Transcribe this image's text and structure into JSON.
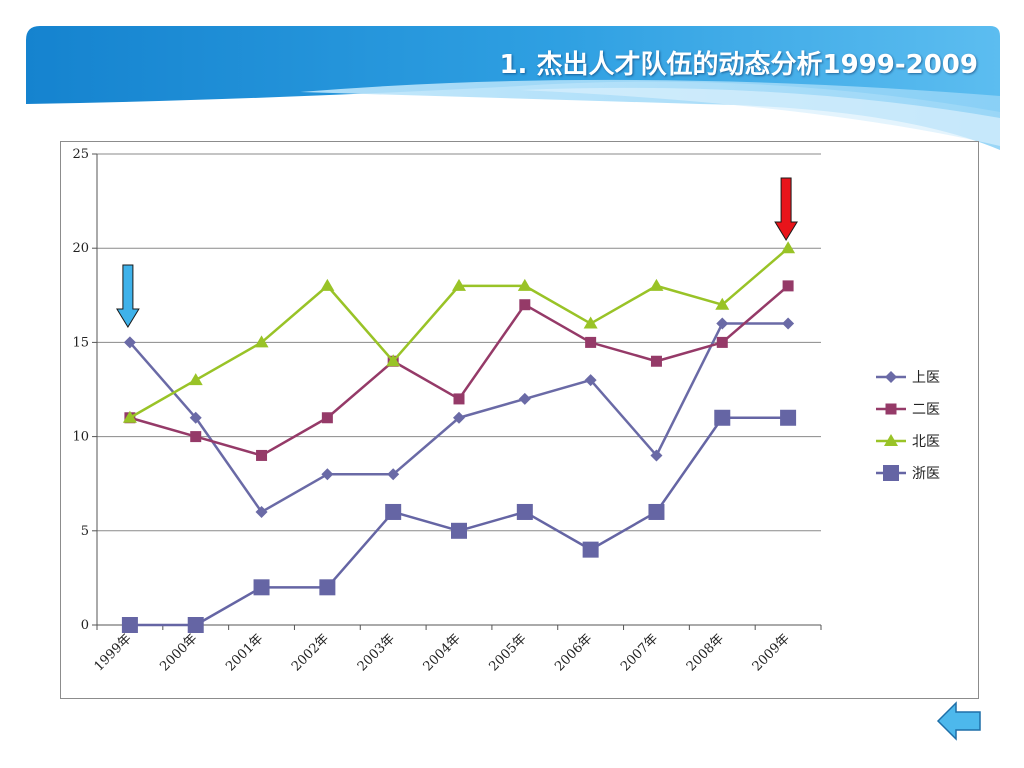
{
  "slide": {
    "title": "1. 杰出人才队伍的动态分析1999-2009"
  },
  "colors": {
    "banner_dark": "#1a8fd6",
    "banner_light": "#7ccaf3",
    "title_text": "#ffffff",
    "gridline": "#8a8a8a",
    "up_arrow": "#e8141a",
    "down_arrow": "#3fb2ea",
    "back_button": "#4db8ec"
  },
  "annotations": {
    "down_arrow": {
      "at_category": "1999年",
      "icon": "down-arrow-icon",
      "color": "#3fb2ea"
    },
    "up_arrow": {
      "at_category": "2009年",
      "icon": "red-down-arrow-icon",
      "color": "#e8141a"
    }
  },
  "navigation": {
    "back_icon": "left-arrow-icon"
  },
  "chart_data": {
    "type": "line",
    "title": "",
    "xlabel": "",
    "ylabel": "",
    "categories": [
      "1999年",
      "2000年",
      "2001年",
      "2002年",
      "2003年",
      "2004年",
      "2005年",
      "2006年",
      "2007年",
      "2008年",
      "2009年"
    ],
    "ylim": [
      0,
      25
    ],
    "yticks": [
      0,
      5,
      10,
      15,
      20,
      25
    ],
    "grid": true,
    "legend_position": "right",
    "series": [
      {
        "name": "上医",
        "color": "#6a6aa6",
        "marker": "diamond",
        "values": [
          15,
          11,
          6,
          8,
          8,
          11,
          12,
          13,
          9,
          16,
          16
        ]
      },
      {
        "name": "二医",
        "color": "#953a68",
        "marker": "square",
        "values": [
          11,
          10,
          9,
          11,
          14,
          12,
          17,
          15,
          14,
          15,
          18
        ]
      },
      {
        "name": "北医",
        "color": "#99c327",
        "marker": "triangle",
        "values": [
          11,
          13,
          15,
          18,
          14,
          18,
          18,
          16,
          18,
          17,
          20
        ]
      },
      {
        "name": "浙医",
        "color": "#6565a4",
        "marker": "bigsquare",
        "values": [
          0,
          0,
          2,
          2,
          6,
          5,
          6,
          4,
          6,
          11,
          11
        ]
      }
    ]
  }
}
